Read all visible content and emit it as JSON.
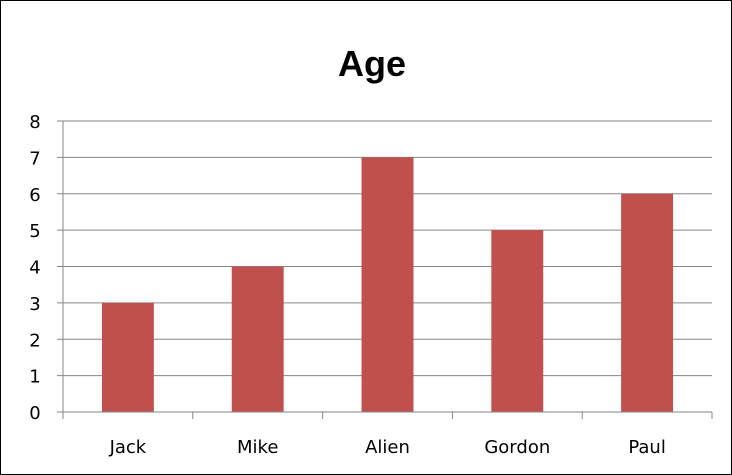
{
  "chart_data": {
    "type": "bar",
    "title": "Age",
    "xlabel": "",
    "ylabel": "",
    "categories": [
      "Jack",
      "Mike",
      "Alien",
      "Gordon",
      "Paul"
    ],
    "values": [
      3,
      4,
      7,
      5,
      6
    ],
    "ylim": [
      0,
      8
    ],
    "yticks": [
      "0",
      "1",
      "2",
      "3",
      "4",
      "5",
      "6",
      "7",
      "8"
    ],
    "grid": "horizontal",
    "legend": "none",
    "bar_color": "#c0504d",
    "grid_color": "#868686"
  }
}
